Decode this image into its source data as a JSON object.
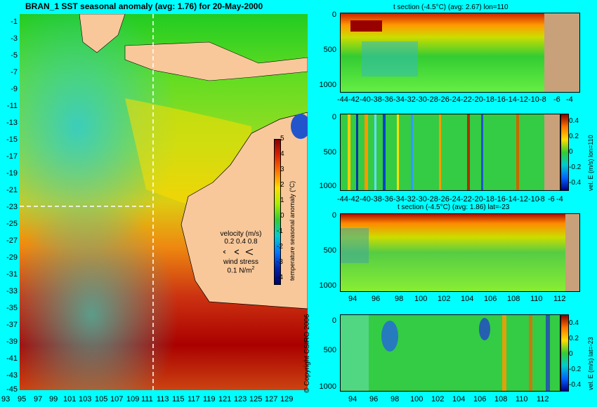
{
  "map": {
    "title": "BRAN_1  SST seasonal anomaly  (avg: 1.76) for 20-May-2000",
    "lat_ticks": [
      "-1",
      "-3",
      "-5",
      "-7",
      "-9",
      "-11",
      "-13",
      "-15",
      "-17",
      "-19",
      "-21",
      "-23",
      "-25",
      "-27",
      "-29",
      "-31",
      "-33",
      "-35",
      "-37",
      "-39",
      "-41",
      "-43",
      "-45"
    ],
    "lon_ticks": [
      "93",
      "95",
      "97",
      "99",
      "101",
      "103",
      "105",
      "107",
      "109",
      "111",
      "113",
      "115",
      "117",
      "119",
      "121",
      "123",
      "125",
      "127",
      "129"
    ],
    "colorbar_ticks": [
      "5",
      "4",
      "3",
      "2",
      "1",
      "0",
      "-1",
      "-2",
      "-3",
      "-4"
    ],
    "colorbar_label": "temperature seasonal anomaly (°C)",
    "velocity_label": "velocity (m/s)",
    "velocity_scale": "0.2 0.4 0.8",
    "wind_label": "wind stress",
    "wind_value": "0.1 N/m",
    "wind_exp": "2",
    "copyright": "© Copyright CSIRO 2006",
    "section_markers": {
      "lon": 110,
      "lat": -23
    }
  },
  "panels": {
    "p1": {
      "title": "t section (-4.5°C) (avg: 2.67) lon=110",
      "y_ticks": [
        "0",
        "500",
        "1000"
      ],
      "x_ticks": [
        "-44",
        "-42",
        "-40",
        "-38",
        "-36",
        "-34",
        "-32",
        "-30",
        "-28",
        "-26",
        "-24",
        "-22",
        "-20",
        "-18",
        "-16",
        "-14",
        "-12",
        "-10",
        "-8",
        "-6",
        "-4"
      ]
    },
    "p2": {
      "y_ticks": [
        "0",
        "500",
        "1000"
      ],
      "x_ticks": [
        "-44",
        "-42",
        "-40",
        "-38",
        "-36",
        "-34",
        "-32",
        "-30",
        "-28",
        "-26",
        "-24",
        "-22",
        "-20",
        "-18",
        "-16",
        "-14",
        "-12",
        "-10",
        "-8",
        "-6",
        "-4"
      ],
      "cb_ticks": [
        "0.4",
        "0.2",
        "0",
        "-0.2",
        "-0.4"
      ],
      "cb_label": "vel. E (m/s) lon=110"
    },
    "p3": {
      "title": "t section (-4.5°C) (avg: 1.86) lat=-23",
      "y_ticks": [
        "0",
        "500",
        "1000"
      ],
      "x_ticks": [
        "94",
        "96",
        "98",
        "100",
        "102",
        "104",
        "106",
        "108",
        "110",
        "112"
      ]
    },
    "p4": {
      "y_ticks": [
        "0",
        "500",
        "1000"
      ],
      "x_ticks": [
        "94",
        "96",
        "98",
        "100",
        "102",
        "104",
        "106",
        "108",
        "110",
        "112"
      ],
      "cb_ticks": [
        "0.4",
        "0.2",
        "0",
        "-0.2",
        "-0.4"
      ],
      "cb_label": "vel. E (m/s) lat=-23"
    }
  }
}
